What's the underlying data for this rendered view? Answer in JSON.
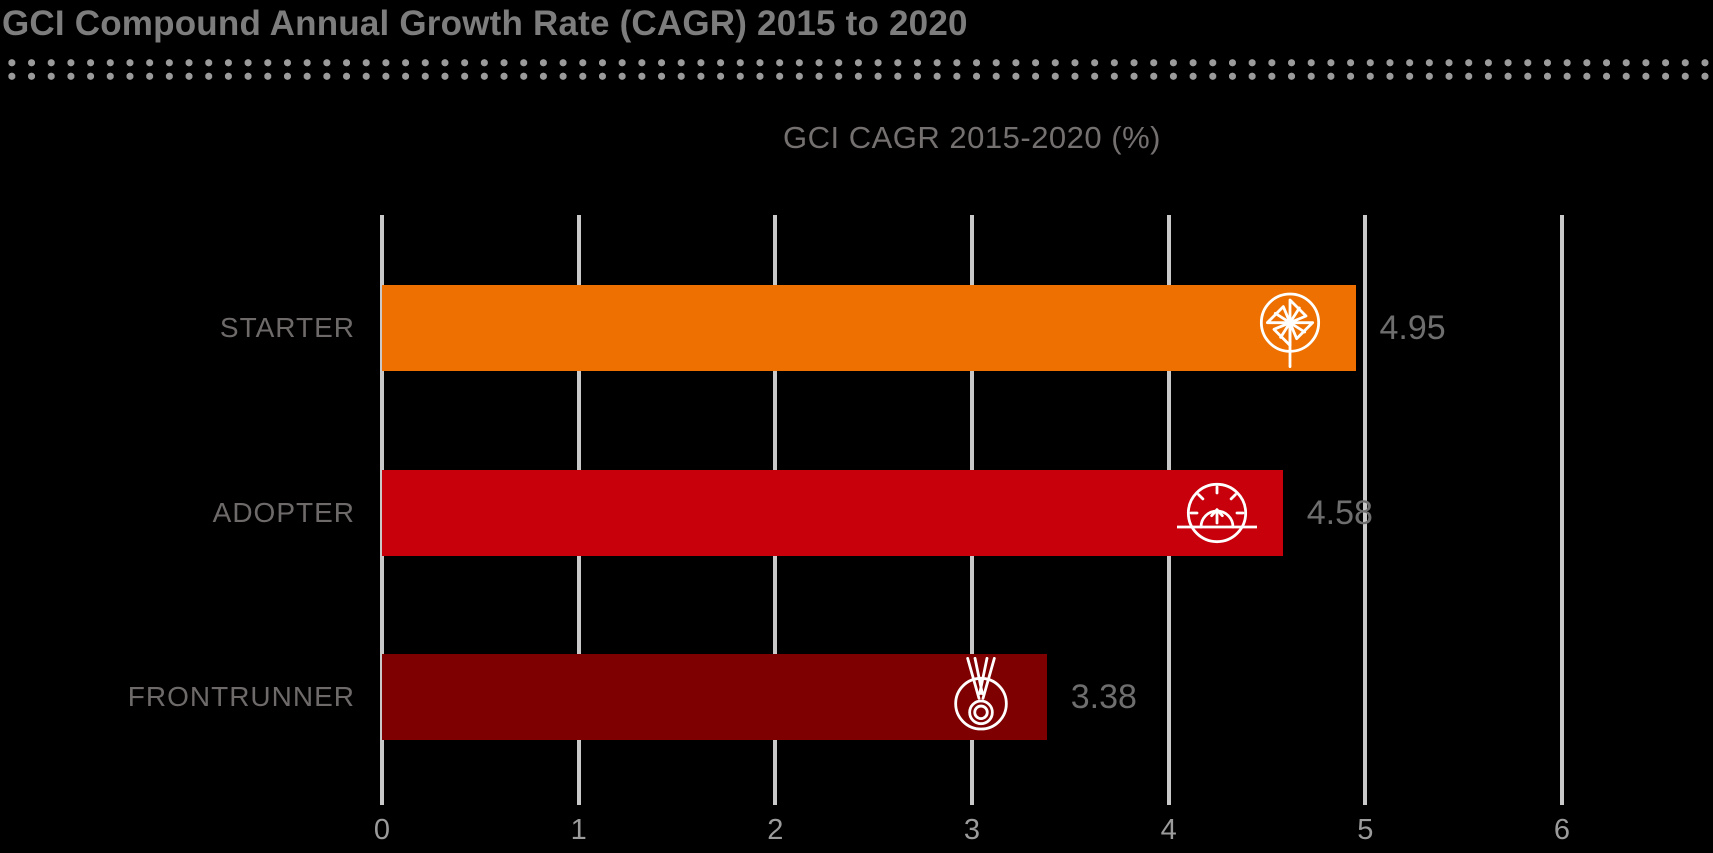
{
  "header": {
    "title": "GCI Compound Annual Growth Rate (CAGR) 2015 to 2020"
  },
  "chart_data": {
    "type": "bar",
    "orientation": "horizontal",
    "title": "GCI CAGR 2015-2020 (%)",
    "categories": [
      "STARTER",
      "ADOPTER",
      "FRONTRUNNER"
    ],
    "values": [
      4.95,
      4.58,
      3.38
    ],
    "value_labels": [
      "4.95",
      "4.58",
      "3.38"
    ],
    "bar_colors": [
      "#ED7000",
      "#C7000C",
      "#7E0000"
    ],
    "icons": [
      "pinwheel-icon",
      "gauge-icon",
      "medal-icon"
    ],
    "xlim": [
      0,
      6
    ],
    "x_ticks": [
      "0",
      "1",
      "2",
      "3",
      "4",
      "5",
      "6"
    ],
    "grid": true,
    "gridline_color": "#c9c9c9",
    "legend": "none",
    "background": "#000000"
  },
  "colors": {
    "title_text": "#7d7d7d",
    "subtitle_text": "#757070",
    "category_text": "#6e6a6a",
    "value_text": "#6e6e6e",
    "tick_text": "#9b9b9b",
    "separator_dots": "#9b9b9b",
    "icon_stroke": "#ffffff"
  }
}
